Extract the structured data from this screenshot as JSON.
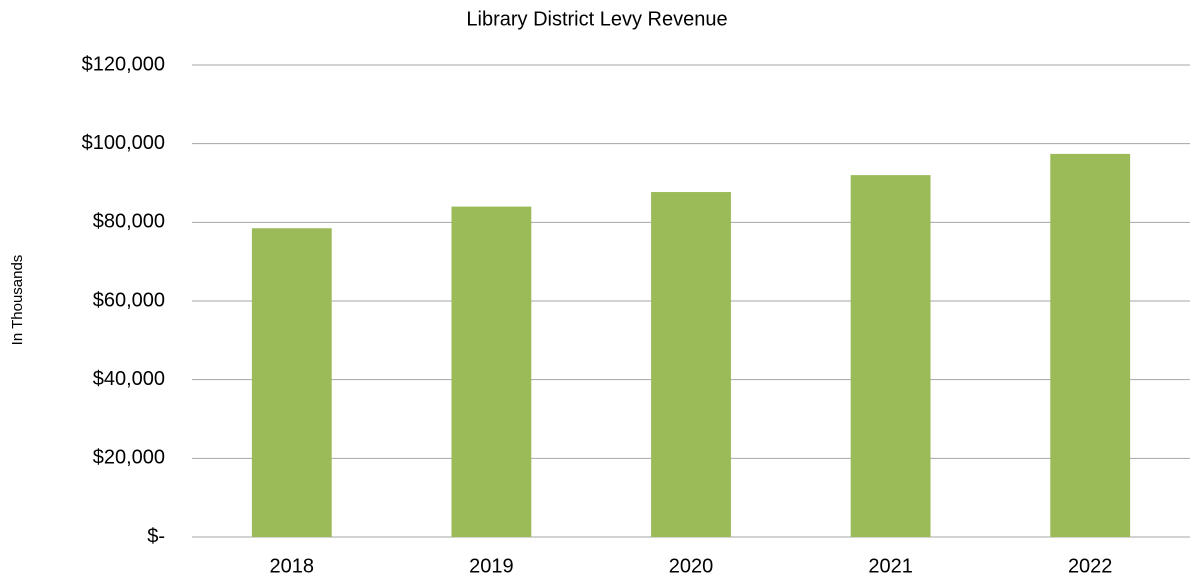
{
  "chart_data": {
    "type": "bar",
    "title": "Library District Levy Revenue",
    "y_label": "In Thousands",
    "categories": [
      "2018",
      "2019",
      "2020",
      "2021",
      "2022"
    ],
    "values": [
      78500,
      84000,
      87700,
      92000,
      97400
    ],
    "color": "#9bbb59",
    "ylim": [
      0,
      120000
    ],
    "yticks": [
      {
        "value": 0,
        "label": "$-"
      },
      {
        "value": 20000,
        "label": "$20,000"
      },
      {
        "value": 40000,
        "label": "$40,000"
      },
      {
        "value": 60000,
        "label": "$60,000"
      },
      {
        "value": 80000,
        "label": "$80,000"
      },
      {
        "value": 100000,
        "label": "$100,000"
      },
      {
        "value": 120000,
        "label": "$120,000"
      }
    ],
    "grid": true
  }
}
